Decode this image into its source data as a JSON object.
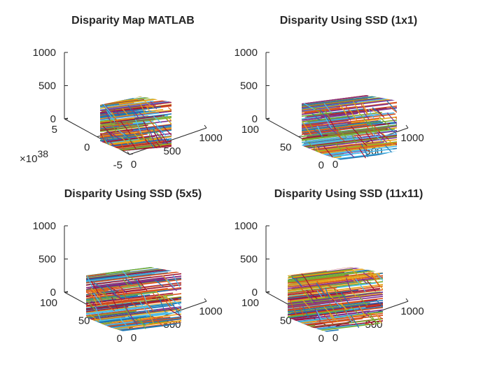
{
  "figure": {
    "layout": "2x2 subplots",
    "background": "#ffffff"
  },
  "chart_data": [
    {
      "type": "3d-surface",
      "title": "Disparity Map MATLAB",
      "xlabel": "",
      "ylabel": "",
      "zlabel": "",
      "z_ticks": [
        "0",
        "500",
        "1000"
      ],
      "x_ticks": [
        "0",
        "500",
        "1000"
      ],
      "y_ticks": [
        "-5",
        "0",
        "5"
      ],
      "y_exponent": {
        "base": "×10",
        "power": "38"
      },
      "zlim": [
        0,
        1000
      ],
      "xlim": [
        0,
        1000
      ],
      "ylim": [
        -5,
        5
      ],
      "grid": false,
      "colors": [
        "#e6a317",
        "#1f77b4",
        "#d9531e",
        "#7e2f8e",
        "#77ac30",
        "#4dbeee",
        "#a2142f"
      ]
    },
    {
      "type": "3d-surface",
      "title": "Disparity Using SSD (1x1)",
      "xlabel": "",
      "ylabel": "",
      "zlabel": "",
      "z_ticks": [
        "0",
        "500",
        "1000"
      ],
      "x_ticks": [
        "0",
        "500",
        "1000"
      ],
      "y_ticks": [
        "0",
        "50",
        "100"
      ],
      "zlim": [
        0,
        1000
      ],
      "xlim": [
        0,
        1000
      ],
      "ylim": [
        0,
        100
      ],
      "grid": false,
      "colors": [
        "#e6a317",
        "#1f77b4",
        "#d9531e",
        "#7e2f8e",
        "#77ac30",
        "#4dbeee",
        "#a2142f"
      ]
    },
    {
      "type": "3d-surface",
      "title": "Disparity Using SSD (5x5)",
      "xlabel": "",
      "ylabel": "",
      "zlabel": "",
      "z_ticks": [
        "0",
        "500",
        "1000"
      ],
      "x_ticks": [
        "0",
        "500",
        "1000"
      ],
      "y_ticks": [
        "0",
        "50",
        "100"
      ],
      "zlim": [
        0,
        1000
      ],
      "xlim": [
        0,
        1000
      ],
      "ylim": [
        0,
        100
      ],
      "grid": false,
      "colors": [
        "#e6a317",
        "#1f77b4",
        "#d9531e",
        "#7e2f8e",
        "#77ac30",
        "#4dbeee",
        "#a2142f"
      ]
    },
    {
      "type": "3d-surface",
      "title": "Disparity Using SSD (11x11)",
      "xlabel": "",
      "ylabel": "",
      "zlabel": "",
      "z_ticks": [
        "0",
        "500",
        "1000"
      ],
      "x_ticks": [
        "0",
        "500",
        "1000"
      ],
      "y_ticks": [
        "0",
        "50",
        "100"
      ],
      "zlim": [
        0,
        1000
      ],
      "xlim": [
        0,
        1000
      ],
      "ylim": [
        0,
        100
      ],
      "grid": false,
      "colors": [
        "#e6a317",
        "#1f77b4",
        "#d9531e",
        "#7e2f8e",
        "#77ac30",
        "#4dbeee",
        "#a2142f"
      ]
    }
  ]
}
